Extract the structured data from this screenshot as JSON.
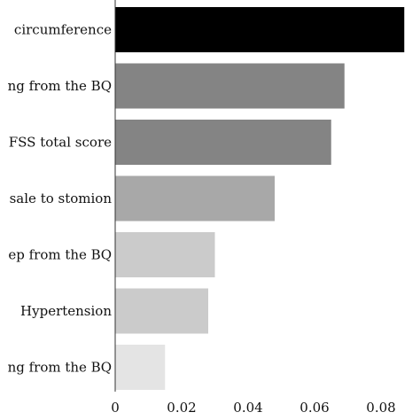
{
  "chart_data": {
    "type": "bar",
    "orientation": "horizontal",
    "categories": [
      "circumference",
      "ng from the BQ",
      "FSS total score",
      "sale to stomion",
      "ep from the BQ",
      "Hypertension",
      "ng from the BQ"
    ],
    "values": [
      0.087,
      0.069,
      0.065,
      0.048,
      0.03,
      0.028,
      0.015
    ],
    "colors": [
      "#000000",
      "#848484",
      "#848484",
      "#a8a8a8",
      "#cbcbcb",
      "#cbcbcb",
      "#e4e4e4"
    ],
    "xticks": [
      "0",
      "0.02",
      "0.04",
      "0.06",
      "0.08"
    ],
    "xlim": [
      0,
      0.088
    ],
    "grid": false,
    "title": "",
    "xlabel": "",
    "ylabel": ""
  }
}
